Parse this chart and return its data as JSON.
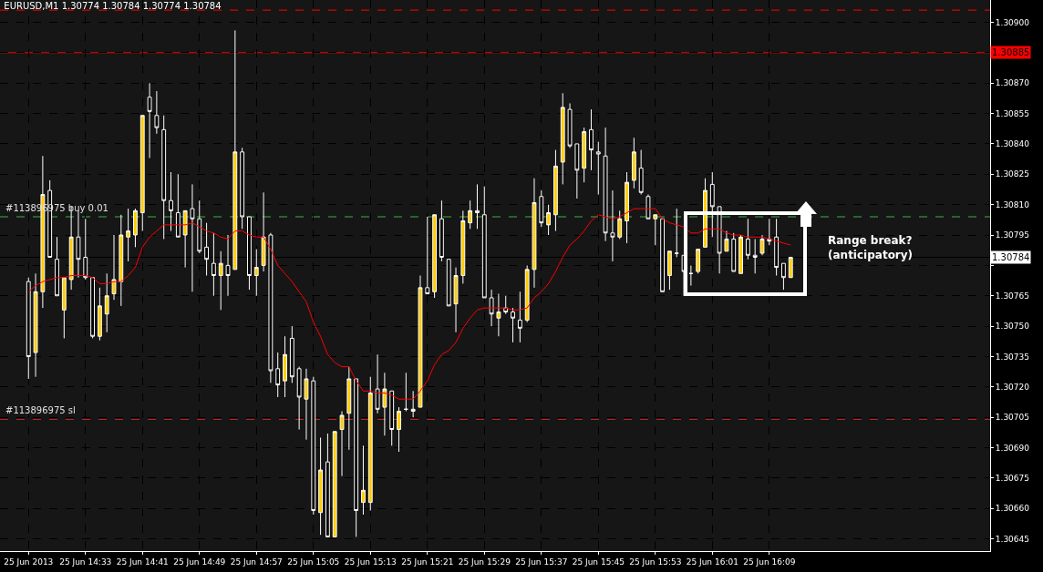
{
  "chart_data": {
    "type": "candlestick",
    "title": "EURUSD,M1 1.30774 1.30784 1.30774 1.30784",
    "x": [
      "2013-06-25T14:25",
      "2013-06-25T14:26",
      "2013-06-25T14:27",
      "2013-06-25T14:28",
      "2013-06-25T14:29",
      "2013-06-25T14:30",
      "2013-06-25T14:31",
      "2013-06-25T14:32",
      "2013-06-25T14:33",
      "2013-06-25T14:34",
      "2013-06-25T14:35",
      "2013-06-25T14:36",
      "2013-06-25T14:37",
      "2013-06-25T14:38",
      "2013-06-25T14:39",
      "2013-06-25T14:40",
      "2013-06-25T14:41",
      "2013-06-25T14:42",
      "2013-06-25T14:43",
      "2013-06-25T14:44",
      "2013-06-25T14:45",
      "2013-06-25T14:46",
      "2013-06-25T14:47",
      "2013-06-25T14:48",
      "2013-06-25T14:49",
      "2013-06-25T14:50",
      "2013-06-25T14:51",
      "2013-06-25T14:52",
      "2013-06-25T14:53",
      "2013-06-25T14:54",
      "2013-06-25T14:55",
      "2013-06-25T14:56",
      "2013-06-25T14:57",
      "2013-06-25T14:58",
      "2013-06-25T14:59",
      "2013-06-25T15:00",
      "2013-06-25T15:01",
      "2013-06-25T15:02",
      "2013-06-25T15:03",
      "2013-06-25T15:04",
      "2013-06-25T15:05",
      "2013-06-25T15:06",
      "2013-06-25T15:07",
      "2013-06-25T15:08",
      "2013-06-25T15:09",
      "2013-06-25T15:10",
      "2013-06-25T15:11",
      "2013-06-25T15:12",
      "2013-06-25T15:13",
      "2013-06-25T15:14",
      "2013-06-25T15:15",
      "2013-06-25T15:16",
      "2013-06-25T15:17",
      "2013-06-25T15:18",
      "2013-06-25T15:19",
      "2013-06-25T15:20",
      "2013-06-25T15:21",
      "2013-06-25T15:22",
      "2013-06-25T15:23",
      "2013-06-25T15:24",
      "2013-06-25T15:25",
      "2013-06-25T15:26",
      "2013-06-25T15:27",
      "2013-06-25T15:28",
      "2013-06-25T15:29",
      "2013-06-25T15:30",
      "2013-06-25T15:31",
      "2013-06-25T15:32",
      "2013-06-25T15:33",
      "2013-06-25T15:34",
      "2013-06-25T15:35",
      "2013-06-25T15:36",
      "2013-06-25T15:37",
      "2013-06-25T15:38",
      "2013-06-25T15:39",
      "2013-06-25T15:40",
      "2013-06-25T15:41",
      "2013-06-25T15:42",
      "2013-06-25T15:43",
      "2013-06-25T15:44",
      "2013-06-25T15:45",
      "2013-06-25T15:46",
      "2013-06-25T15:47",
      "2013-06-25T15:48",
      "2013-06-25T15:49",
      "2013-06-25T15:50",
      "2013-06-25T15:51",
      "2013-06-25T15:52",
      "2013-06-25T15:53",
      "2013-06-25T15:54",
      "2013-06-25T15:55",
      "2013-06-25T15:56",
      "2013-06-25T15:57",
      "2013-06-25T15:58",
      "2013-06-25T15:59",
      "2013-06-25T16:00",
      "2013-06-25T16:01",
      "2013-06-25T16:02",
      "2013-06-25T16:03",
      "2013-06-25T16:04",
      "2013-06-25T16:05",
      "2013-06-25T16:06",
      "2013-06-25T16:07",
      "2013-06-25T16:08",
      "2013-06-25T16:09",
      "2013-06-25T16:10",
      "2013-06-25T16:11",
      "2013-06-25T16:12"
    ],
    "ohlc": [
      [
        1.30772,
        1.30774,
        1.30724,
        1.30735
      ],
      [
        1.30737,
        1.30776,
        1.30725,
        1.30767
      ],
      [
        1.30767,
        1.30834,
        1.30759,
        1.30815
      ],
      [
        1.30817,
        1.30822,
        1.30784,
        1.30784
      ],
      [
        1.30783,
        1.30794,
        1.30765,
        1.30765
      ],
      [
        1.30758,
        1.30774,
        1.30744,
        1.30774
      ],
      [
        1.30773,
        1.30809,
        1.30768,
        1.30794
      ],
      [
        1.30794,
        1.30807,
        1.30774,
        1.30783
      ],
      [
        1.30784,
        1.30803,
        1.30773,
        1.30774
      ],
      [
        1.30774,
        1.30774,
        1.30744,
        1.30745
      ],
      [
        1.30745,
        1.30769,
        1.30743,
        1.3076
      ],
      [
        1.30756,
        1.30776,
        1.30747,
        1.30765
      ],
      [
        1.30766,
        1.30795,
        1.30763,
        1.30773
      ],
      [
        1.30772,
        1.30805,
        1.3076,
        1.30795
      ],
      [
        1.30794,
        1.30808,
        1.30782,
        1.30797
      ],
      [
        1.30795,
        1.30808,
        1.30789,
        1.30807
      ],
      [
        1.30806,
        1.30854,
        1.30797,
        1.30854
      ],
      [
        1.30863,
        1.3087,
        1.30833,
        1.30856
      ],
      [
        1.30854,
        1.30866,
        1.30845,
        1.30848
      ],
      [
        1.30847,
        1.30854,
        1.30793,
        1.30812
      ],
      [
        1.30812,
        1.30826,
        1.30797,
        1.30807
      ],
      [
        1.30806,
        1.30825,
        1.30794,
        1.30794
      ],
      [
        1.30795,
        1.30807,
        1.30779,
        1.30807
      ],
      [
        1.30808,
        1.3082,
        1.30767,
        1.30803
      ],
      [
        1.30803,
        1.30812,
        1.30786,
        1.30787
      ],
      [
        1.30789,
        1.30801,
        1.30775,
        1.30783
      ],
      [
        1.30781,
        1.30796,
        1.30765,
        1.30775
      ],
      [
        1.30775,
        1.30787,
        1.30758,
        1.30781
      ],
      [
        1.3078,
        1.30795,
        1.30765,
        1.30775
      ],
      [
        1.30778,
        1.30896,
        1.30778,
        1.30836
      ],
      [
        1.30836,
        1.30838,
        1.30798,
        1.30804
      ],
      [
        1.30804,
        1.30804,
        1.30768,
        1.30775
      ],
      [
        1.30775,
        1.30788,
        1.30765,
        1.30779
      ],
      [
        1.3078,
        1.30816,
        1.30777,
        1.30794
      ],
      [
        1.30795,
        1.30796,
        1.30722,
        1.30728
      ],
      [
        1.30729,
        1.30737,
        1.30715,
        1.30721
      ],
      [
        1.30723,
        1.30745,
        1.30715,
        1.30736
      ],
      [
        1.30744,
        1.3075,
        1.30722,
        1.30725
      ],
      [
        1.30729,
        1.3073,
        1.30699,
        1.30715
      ],
      [
        1.30714,
        1.30729,
        1.30694,
        1.30724
      ],
      [
        1.30723,
        1.30725,
        1.30657,
        1.30659
      ],
      [
        1.30658,
        1.30695,
        1.30647,
        1.30679
      ],
      [
        1.30683,
        1.30697,
        1.30646,
        1.30646
      ],
      [
        1.30646,
        1.30698,
        1.30646,
        1.30698
      ],
      [
        1.30699,
        1.30708,
        1.30676,
        1.30706
      ],
      [
        1.30707,
        1.3073,
        1.30689,
        1.30724
      ],
      [
        1.30724,
        1.30724,
        1.30646,
        1.30659
      ],
      [
        1.30663,
        1.30691,
        1.30657,
        1.30669
      ],
      [
        1.30663,
        1.30725,
        1.30659,
        1.30717
      ],
      [
        1.30719,
        1.30736,
        1.30707,
        1.30709
      ],
      [
        1.3071,
        1.30727,
        1.30696,
        1.30719
      ],
      [
        1.30718,
        1.30718,
        1.30691,
        1.30699
      ],
      [
        1.30699,
        1.3071,
        1.30688,
        1.30708
      ],
      [
        1.30709,
        1.30727,
        1.30708,
        1.30709
      ],
      [
        1.30708,
        1.30718,
        1.30705,
        1.30709
      ],
      [
        1.3071,
        1.30775,
        1.3071,
        1.30769
      ],
      [
        1.30769,
        1.30804,
        1.30766,
        1.30766
      ],
      [
        1.30767,
        1.30805,
        1.30764,
        1.30805
      ],
      [
        1.30803,
        1.30812,
        1.30782,
        1.30784
      ],
      [
        1.30783,
        1.30783,
        1.3076,
        1.3076
      ],
      [
        1.30761,
        1.30779,
        1.30747,
        1.30775
      ],
      [
        1.30775,
        1.30807,
        1.30771,
        1.30802
      ],
      [
        1.30801,
        1.30812,
        1.30798,
        1.30807
      ],
      [
        1.30807,
        1.3082,
        1.30798,
        1.30806
      ],
      [
        1.30805,
        1.30819,
        1.30764,
        1.30764
      ],
      [
        1.30764,
        1.30768,
        1.3075,
        1.30756
      ],
      [
        1.30754,
        1.30766,
        1.30745,
        1.30757
      ],
      [
        1.30759,
        1.30765,
        1.30756,
        1.30757
      ],
      [
        1.30757,
        1.30759,
        1.30742,
        1.30754
      ],
      [
        1.30753,
        1.30767,
        1.30742,
        1.30749
      ],
      [
        1.30753,
        1.3078,
        1.30752,
        1.30778
      ],
      [
        1.30778,
        1.30823,
        1.30769,
        1.30811
      ],
      [
        1.30814,
        1.30817,
        1.30799,
        1.30801
      ],
      [
        1.308,
        1.3081,
        1.30795,
        1.30806
      ],
      [
        1.30805,
        1.30837,
        1.30797,
        1.30829
      ],
      [
        1.30831,
        1.30865,
        1.3082,
        1.30858
      ],
      [
        1.30857,
        1.3086,
        1.30838,
        1.30839
      ],
      [
        1.3084,
        1.3084,
        1.30813,
        1.30827
      ],
      [
        1.30828,
        1.30848,
        1.30821,
        1.30846
      ],
      [
        1.30847,
        1.30857,
        1.30827,
        1.30837
      ],
      [
        1.30836,
        1.30841,
        1.30815,
        1.30835
      ],
      [
        1.30834,
        1.30848,
        1.30792,
        1.30796
      ],
      [
        1.30796,
        1.30817,
        1.30782,
        1.30794
      ],
      [
        1.30794,
        1.30807,
        1.30793,
        1.30803
      ],
      [
        1.30802,
        1.30826,
        1.30791,
        1.30821
      ],
      [
        1.30822,
        1.30843,
        1.30818,
        1.30836
      ],
      [
        1.30828,
        1.30837,
        1.30815,
        1.30816
      ],
      [
        1.30814,
        1.30815,
        1.30803,
        1.30803
      ],
      [
        1.30803,
        1.30805,
        1.3079,
        1.30805
      ],
      [
        1.30803,
        1.30803,
        1.30767,
        1.30767
      ],
      [
        1.30775,
        1.30787,
        1.30768,
        1.30787
      ],
      [
        1.30786,
        1.30808,
        1.30784,
        1.30786
      ],
      [
        1.30785,
        1.30785,
        1.30765,
        1.30777
      ],
      [
        1.30776,
        1.3078,
        1.3077,
        1.30776
      ],
      [
        1.30777,
        1.30788,
        1.30776,
        1.30788
      ],
      [
        1.30789,
        1.30823,
        1.30789,
        1.30817
      ],
      [
        1.3082,
        1.30826,
        1.30794,
        1.30809
      ],
      [
        1.30809,
        1.30809,
        1.30776,
        1.30786
      ],
      [
        1.30787,
        1.30797,
        1.30787,
        1.30793
      ],
      [
        1.30793,
        1.30796,
        1.30777,
        1.30777
      ],
      [
        1.30776,
        1.30795,
        1.30776,
        1.30794
      ],
      [
        1.30793,
        1.30803,
        1.30783,
        1.30785
      ],
      [
        1.30785,
        1.30793,
        1.30776,
        1.30784
      ],
      [
        1.30786,
        1.30795,
        1.30785,
        1.30793
      ],
      [
        1.30792,
        1.30803,
        1.3079,
        1.30793
      ],
      [
        1.30794,
        1.30803,
        1.30775,
        1.30779
      ],
      [
        1.30781,
        1.30781,
        1.30768,
        1.30774
      ],
      [
        1.30774,
        1.30784,
        1.30774,
        1.30784
      ]
    ],
    "series": [
      {
        "type": "line",
        "color": "#ff0000",
        "values": [
          1.30767,
          1.3077,
          1.30772,
          1.30773,
          1.30774,
          1.30774,
          1.30775,
          1.30775,
          1.30775,
          1.30774,
          1.30771,
          1.30771,
          1.30772,
          1.30772,
          1.30775,
          1.30779,
          1.30789,
          1.30794,
          1.30797,
          1.308,
          1.308,
          1.308,
          1.308,
          1.30801,
          1.30799,
          1.30797,
          1.30796,
          1.30794,
          1.30793,
          1.30797,
          1.30797,
          1.30795,
          1.30794,
          1.30794,
          1.30788,
          1.3078,
          1.30776,
          1.30772,
          1.30767,
          1.30762,
          1.30752,
          1.30745,
          1.30736,
          1.30732,
          1.3073,
          1.3073,
          1.30723,
          1.30718,
          1.30718,
          1.30717,
          1.30717,
          1.30716,
          1.30714,
          1.30714,
          1.30714,
          1.30718,
          1.30723,
          1.30731,
          1.30736,
          1.30738,
          1.30742,
          1.30749,
          1.30754,
          1.30758,
          1.30759,
          1.30759,
          1.30759,
          1.30759,
          1.30758,
          1.30758,
          1.30759,
          1.30764,
          1.30767,
          1.30771,
          1.30777,
          1.30784,
          1.3079,
          1.30793,
          1.30797,
          1.30802,
          1.30805,
          1.30804,
          1.30803,
          1.30804,
          1.30806,
          1.30808,
          1.30808,
          1.30808,
          1.30808,
          1.30803,
          1.30801,
          1.308,
          1.30799,
          1.30796,
          1.30796,
          1.30798,
          1.30798,
          1.30798,
          1.30796,
          1.30795,
          1.30795,
          1.30794,
          1.30794,
          1.30794,
          1.30793,
          1.30792,
          1.30791,
          1.3079
        ]
      }
    ],
    "xlim": [
      "2013-06-25T14:21",
      "2013-06-25T16:40"
    ],
    "xticks": [
      {
        "value": "2013-06-25T14:25",
        "label": "25 Jun 2013"
      },
      {
        "value": "2013-06-25T14:33",
        "label": "25 Jun 14:33"
      },
      {
        "value": "2013-06-25T14:41",
        "label": "25 Jun 14:41"
      },
      {
        "value": "2013-06-25T14:49",
        "label": "25 Jun 14:49"
      },
      {
        "value": "2013-06-25T14:57",
        "label": "25 Jun 14:57"
      },
      {
        "value": "2013-06-25T15:05",
        "label": "25 Jun 15:05"
      },
      {
        "value": "2013-06-25T15:13",
        "label": "25 Jun 15:13"
      },
      {
        "value": "2013-06-25T15:21",
        "label": "25 Jun 15:21"
      },
      {
        "value": "2013-06-25T15:29",
        "label": "25 Jun 15:29"
      },
      {
        "value": "2013-06-25T15:37",
        "label": "25 Jun 15:37"
      },
      {
        "value": "2013-06-25T15:45",
        "label": "25 Jun 15:45"
      },
      {
        "value": "2013-06-25T15:53",
        "label": "25 Jun 15:53"
      },
      {
        "value": "2013-06-25T16:01",
        "label": "25 Jun 16:01"
      },
      {
        "value": "2013-06-25T16:09",
        "label": "25 Jun 16:09"
      }
    ],
    "ylim": [
      1.30639,
      1.30911
    ],
    "yticks": [
      {
        "value": 1.30645,
        "label": "1.30645"
      },
      {
        "value": 1.3066,
        "label": "1.30660"
      },
      {
        "value": 1.30675,
        "label": "1.30675"
      },
      {
        "value": 1.3069,
        "label": "1.30690"
      },
      {
        "value": 1.30705,
        "label": "1.30705"
      },
      {
        "value": 1.3072,
        "label": "1.30720"
      },
      {
        "value": 1.30735,
        "label": "1.30735"
      },
      {
        "value": 1.3075,
        "label": "1.30750"
      },
      {
        "value": 1.30765,
        "label": "1.30765"
      },
      {
        "value": 1.3078,
        "label": null
      },
      {
        "value": 1.30795,
        "label": "1.30795"
      },
      {
        "value": 1.3081,
        "label": "1.30810"
      },
      {
        "value": 1.30825,
        "label": "1.30825"
      },
      {
        "value": 1.3084,
        "label": "1.30840"
      },
      {
        "value": 1.30855,
        "label": "1.30855"
      },
      {
        "value": 1.3087,
        "label": "1.30870"
      },
      {
        "value": 1.30885,
        "label": null
      },
      {
        "value": 1.309,
        "label": "1.30900"
      }
    ],
    "grid": true,
    "ref_lines": [
      {
        "axis": "y",
        "value": 1.30885,
        "label": "1.30885",
        "color": "#ff0000",
        "line_style": "solid"
      },
      {
        "axis": "y",
        "value": 1.30906,
        "color": "#ff0000",
        "line_style": "dashed"
      },
      {
        "axis": "y",
        "value": 1.30804,
        "label": "#113896975 buy 0.01",
        "color": "#3cb043",
        "line_style": "dashed"
      },
      {
        "axis": "y",
        "value": 1.30704,
        "label": "#113896975 sl",
        "color": "#d02020",
        "line_style": "dashed"
      },
      {
        "axis": "y",
        "value": 1.30784,
        "label": "1.30784",
        "color": "#000000",
        "line_style": "solid"
      }
    ],
    "annotations": [
      "Range break?\n(anticipatory)"
    ]
  }
}
